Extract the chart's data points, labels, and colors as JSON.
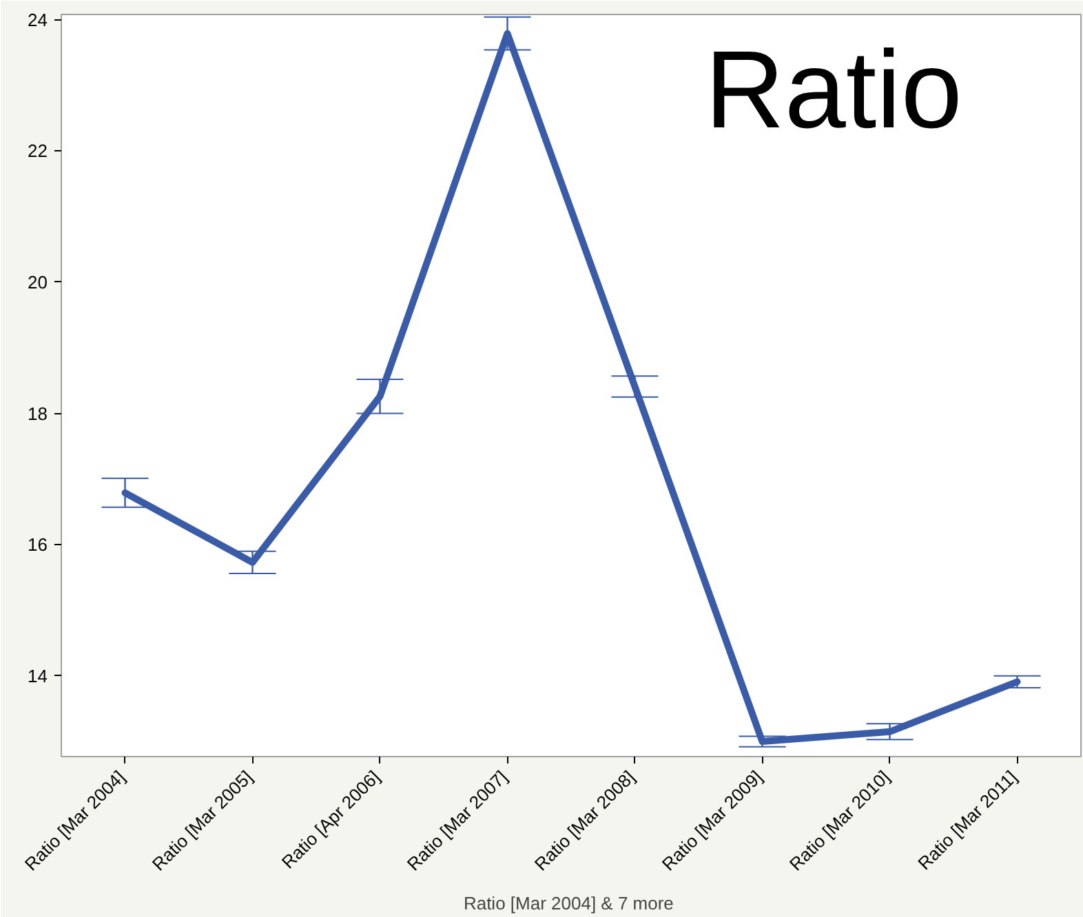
{
  "chart_data": {
    "type": "line",
    "xlabel": "Ratio  [Mar 2004] & 7 more",
    "categories": [
      "Ratio  [Mar 2004]",
      "Ratio  [Mar 2005]",
      "Ratio  [Apr 2006]",
      "Ratio  [Mar 2007]",
      "Ratio  [Mar 2008]",
      "Ratio  [Mar 2009]",
      "Ratio  [Mar 2010]",
      "Ratio  [Mar 2011]"
    ],
    "series": [
      {
        "color": "#3a5ba8",
        "values": [
          16.79,
          15.73,
          18.26,
          23.79,
          18.41,
          13.0,
          13.15,
          13.91
        ],
        "errors": [
          0.22,
          0.17,
          0.26,
          0.25,
          0.16,
          0.08,
          0.12,
          0.09
        ]
      }
    ],
    "ylim": [
      12.77,
      24.08
    ],
    "yticks": [
      14,
      16,
      18,
      20,
      22,
      24
    ],
    "grid": false,
    "marker": "none",
    "line_style": "solid",
    "annotations": [
      "Ratio"
    ]
  }
}
